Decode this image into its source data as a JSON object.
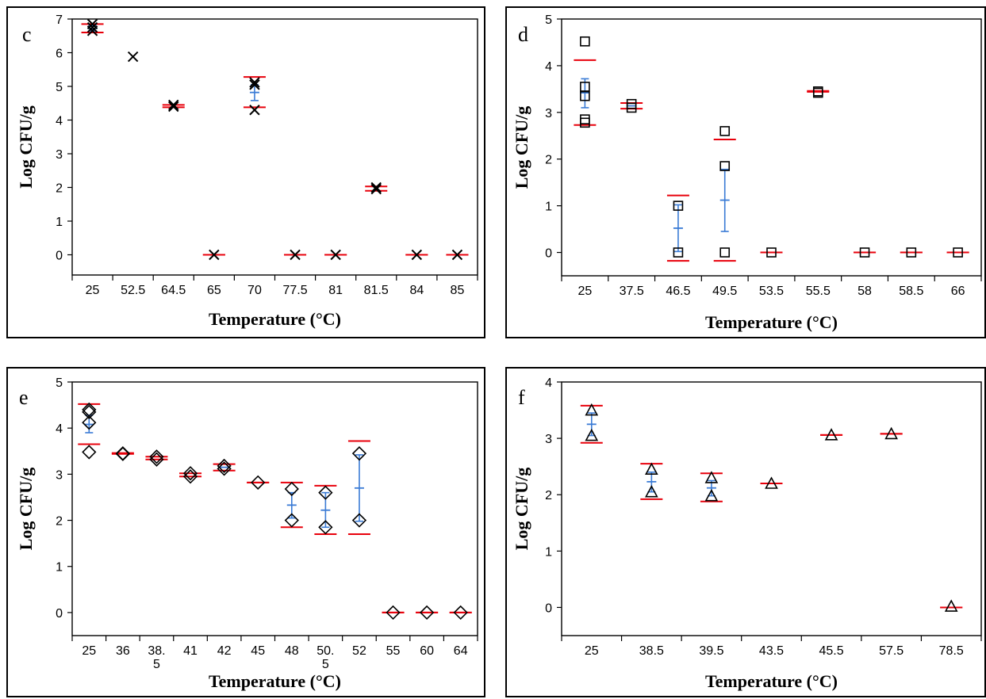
{
  "colors": {
    "ci": "#e8000b",
    "mean": "#3a7bd5",
    "marker": "#000000"
  },
  "chart_data": [
    {
      "id": "c",
      "type": "scatter",
      "panel_label": "c",
      "marker": "x",
      "xlabel": "Temperature (°C)",
      "ylabel": "Log CFU/g",
      "ylim": [
        -0.6,
        7
      ],
      "yticks": [
        0,
        1,
        2,
        3,
        4,
        5,
        6,
        7
      ],
      "categories": [
        "25",
        "52.5",
        "64.5",
        "65",
        "70",
        "77.5",
        "81",
        "81.5",
        "84",
        "85"
      ],
      "groups": [
        {
          "points": [
            6.85,
            6.75,
            6.65
          ],
          "ci": [
            6.85,
            6.6
          ],
          "mean": 6.72,
          "err": [
            6.8,
            6.65
          ]
        },
        {
          "points": [
            5.88
          ]
        },
        {
          "points": [
            4.45,
            4.4
          ],
          "ci": [
            4.45,
            4.38
          ]
        },
        {
          "points": [
            0
          ],
          "ci": [
            0,
            0
          ]
        },
        {
          "points": [
            5.12,
            5.05,
            4.3
          ],
          "ci": [
            5.28,
            4.38
          ],
          "mean": 4.82,
          "err": [
            5.05,
            4.58
          ]
        },
        {
          "points": [
            0
          ],
          "ci": [
            0,
            0
          ]
        },
        {
          "points": [
            0
          ],
          "ci": [
            0,
            0
          ]
        },
        {
          "points": [
            2.0,
            1.95
          ],
          "ci": [
            2.03,
            1.9
          ]
        },
        {
          "points": [
            0
          ],
          "ci": [
            0,
            0
          ]
        },
        {
          "points": [
            0
          ],
          "ci": [
            0,
            0
          ]
        }
      ]
    },
    {
      "id": "d",
      "type": "scatter",
      "panel_label": "d",
      "marker": "square",
      "xlabel": "Temperature (°C)",
      "ylabel": "Log CFU/g",
      "ylim": [
        -0.5,
        5
      ],
      "yticks": [
        0,
        1,
        2,
        3,
        4,
        5
      ],
      "categories": [
        "25",
        "37.5",
        "46.5",
        "49.5",
        "53.5",
        "55.5",
        "58",
        "58.5",
        "66"
      ],
      "groups": [
        {
          "points": [
            4.52,
            3.55,
            3.35,
            2.85,
            2.78
          ],
          "ci": [
            4.12,
            2.73
          ],
          "mean": 3.42,
          "err": [
            3.72,
            3.1
          ]
        },
        {
          "points": [
            3.18,
            3.1
          ],
          "ci": [
            3.2,
            3.08
          ],
          "mean": 3.14
        },
        {
          "points": [
            1.0,
            0
          ],
          "ci": [
            1.22,
            -0.18
          ],
          "mean": 0.52,
          "err": [
            1.02,
            0.02
          ]
        },
        {
          "points": [
            2.6,
            1.85,
            0
          ],
          "ci": [
            2.42,
            -0.18
          ],
          "mean": 1.12,
          "err": [
            1.78,
            0.45
          ]
        },
        {
          "points": [
            0
          ],
          "ci": [
            0,
            0
          ]
        },
        {
          "points": [
            3.45,
            3.42
          ],
          "ci": [
            3.46,
            3.44
          ]
        },
        {
          "points": [
            0
          ],
          "ci": [
            0,
            0
          ]
        },
        {
          "points": [
            0
          ],
          "ci": [
            0,
            0
          ]
        },
        {
          "points": [
            0
          ],
          "ci": [
            0,
            0
          ]
        }
      ]
    },
    {
      "id": "e",
      "type": "scatter",
      "panel_label": "e",
      "marker": "diamond",
      "xlabel": "Temperature (°C)",
      "ylabel": "Log CFU/g",
      "ylim": [
        -0.5,
        5
      ],
      "yticks": [
        0,
        1,
        2,
        3,
        4,
        5
      ],
      "categories": [
        "25",
        "36",
        "38.\n5",
        "41",
        "42",
        "45",
        "48",
        "50.\n5",
        "52",
        "55",
        "60",
        "64"
      ],
      "groups": [
        {
          "points": [
            4.4,
            4.35,
            4.12,
            3.48
          ],
          "ci": [
            4.52,
            3.65
          ],
          "mean": 4.08,
          "err": [
            4.28,
            3.9
          ]
        },
        {
          "points": [
            3.45,
            3.44
          ],
          "ci": [
            3.46,
            3.44
          ]
        },
        {
          "points": [
            3.38,
            3.32
          ],
          "ci": [
            3.38,
            3.32
          ]
        },
        {
          "points": [
            3.02,
            2.95
          ],
          "ci": [
            3.02,
            2.95
          ]
        },
        {
          "points": [
            3.18,
            3.12
          ],
          "ci": [
            3.22,
            3.08
          ],
          "mean": 3.15
        },
        {
          "points": [
            2.82
          ],
          "ci": [
            2.82,
            2.82
          ]
        },
        {
          "points": [
            2.68,
            2.0
          ],
          "ci": [
            2.82,
            1.85
          ],
          "mean": 2.33,
          "err": [
            2.6,
            2.05
          ]
        },
        {
          "points": [
            2.6,
            1.85
          ],
          "ci": [
            2.75,
            1.7
          ],
          "mean": 2.22,
          "err": [
            2.6,
            1.85
          ]
        },
        {
          "points": [
            3.45,
            2.0
          ],
          "ci": [
            3.72,
            1.7
          ],
          "mean": 2.7,
          "err": [
            3.42,
            1.98
          ]
        },
        {
          "points": [
            0
          ],
          "ci": [
            0,
            0
          ]
        },
        {
          "points": [
            0
          ],
          "ci": [
            0,
            0
          ]
        },
        {
          "points": [
            0
          ],
          "ci": [
            0,
            0
          ]
        }
      ]
    },
    {
      "id": "f",
      "type": "scatter",
      "panel_label": "f",
      "marker": "triangle",
      "xlabel": "Temperature (°C)",
      "ylabel": "Log CFU/g",
      "ylim": [
        -0.5,
        4
      ],
      "yticks": [
        0,
        1,
        2,
        3,
        4
      ],
      "categories": [
        "25",
        "38.5",
        "39.5",
        "43.5",
        "45.5",
        "57.5",
        "78.5"
      ],
      "groups": [
        {
          "points": [
            3.5,
            3.05
          ],
          "ci": [
            3.58,
            2.92
          ],
          "mean": 3.25,
          "err": [
            3.45,
            3.05
          ]
        },
        {
          "points": [
            2.45,
            2.05
          ],
          "ci": [
            2.55,
            1.92
          ],
          "mean": 2.23,
          "err": [
            2.4,
            2.05
          ]
        },
        {
          "points": [
            2.3,
            1.98
          ],
          "ci": [
            2.38,
            1.88
          ],
          "mean": 2.12,
          "err": [
            2.25,
            1.98
          ]
        },
        {
          "points": [
            2.2
          ],
          "ci": [
            2.2,
            2.2
          ]
        },
        {
          "points": [
            3.06
          ],
          "ci": [
            3.06,
            3.06
          ]
        },
        {
          "points": [
            3.08
          ],
          "ci": [
            3.08,
            3.08
          ]
        },
        {
          "points": [
            0.02
          ],
          "ci": [
            0,
            0
          ]
        }
      ]
    }
  ]
}
